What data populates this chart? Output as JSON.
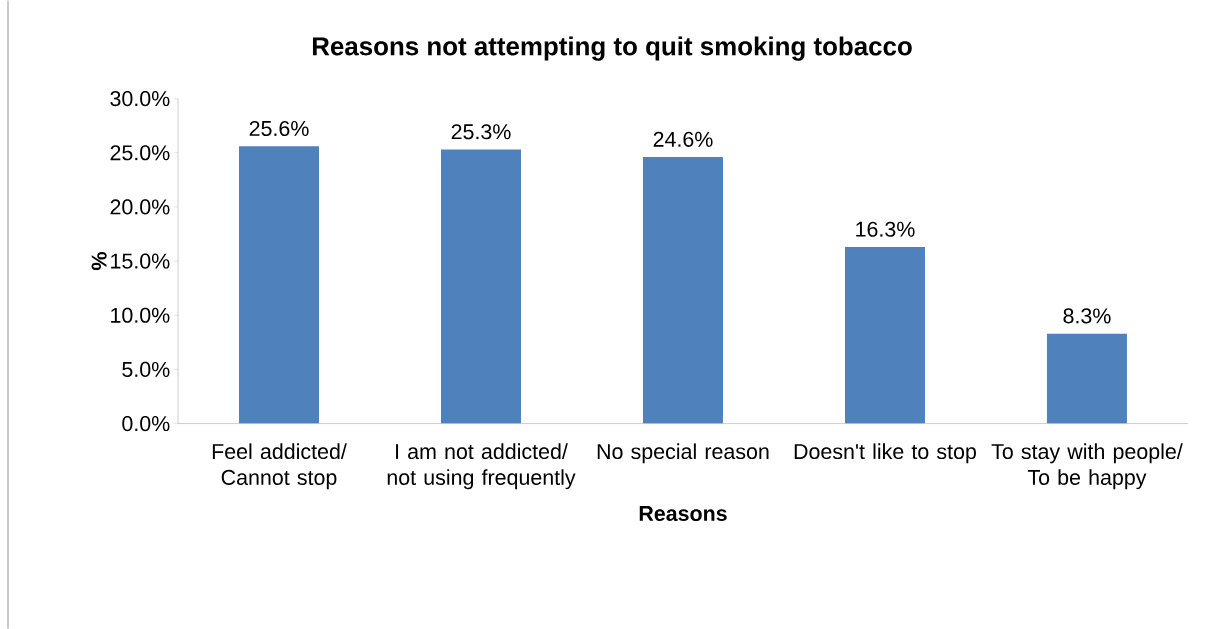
{
  "chart_data": {
    "type": "bar",
    "title": "Reasons not attempting to quit smoking tobacco",
    "xlabel": "Reasons",
    "ylabel": "%",
    "categories": [
      "Feel addicted/ Cannot stop",
      "I am not addicted/ not using frequently",
      "No special reason",
      "Doesn't like to stop",
      "To stay with people/ To be happy"
    ],
    "values": [
      25.6,
      25.3,
      24.6,
      16.3,
      8.3
    ],
    "value_labels": [
      "25.6%",
      "25.3%",
      "24.6%",
      "16.3%",
      "8.3%"
    ],
    "color": "#4f81bd",
    "ylim": [
      0,
      30
    ],
    "yticks": [
      {
        "value": 0,
        "label": "0.0%"
      },
      {
        "value": 5,
        "label": "5.0%"
      },
      {
        "value": 10,
        "label": "10.0%"
      },
      {
        "value": 15,
        "label": "15.0%"
      },
      {
        "value": 20,
        "label": "20.0%"
      },
      {
        "value": 25,
        "label": "25.0%"
      },
      {
        "value": 30,
        "label": "30.0%"
      }
    ],
    "grid": false
  }
}
